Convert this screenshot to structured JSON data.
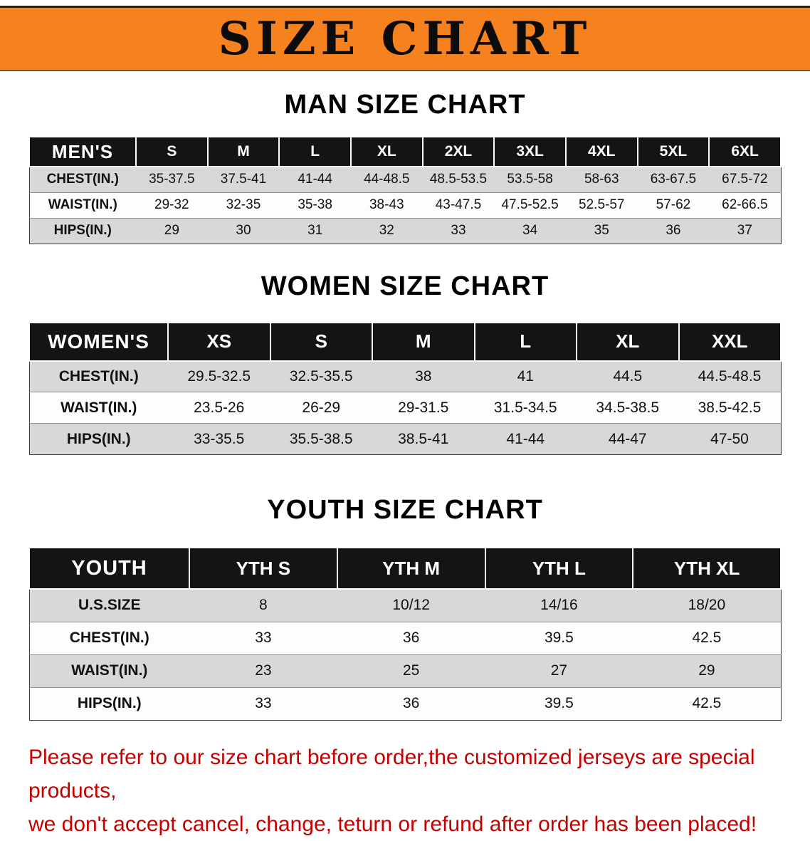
{
  "banner": {
    "title": "SIZE CHART"
  },
  "colors": {
    "banner_bg": "#f5821f",
    "header_bg": "#141414",
    "row_alt": "#d8d8d8",
    "footer_text": "#c20000"
  },
  "sections": [
    {
      "id": "mens",
      "title": "MAN SIZE CHART",
      "table": {
        "header": [
          "MEN'S",
          "S",
          "M",
          "L",
          "XL",
          "2XL",
          "3XL",
          "4XL",
          "5XL",
          "6XL"
        ],
        "rows": [
          [
            "CHEST(IN.)",
            "35-37.5",
            "37.5-41",
            "41-44",
            "44-48.5",
            "48.5-53.5",
            "53.5-58",
            "58-63",
            "63-67.5",
            "67.5-72"
          ],
          [
            "WAIST(IN.)",
            "29-32",
            "32-35",
            "35-38",
            "38-43",
            "43-47.5",
            "47.5-52.5",
            "52.5-57",
            "57-62",
            "62-66.5"
          ],
          [
            "HIPS(IN.)",
            "29",
            "30",
            "31",
            "32",
            "33",
            "34",
            "35",
            "36",
            "37"
          ]
        ]
      }
    },
    {
      "id": "womens",
      "title": "WOMEN SIZE CHART",
      "table": {
        "header": [
          "WOMEN'S",
          "XS",
          "S",
          "M",
          "L",
          "XL",
          "XXL"
        ],
        "rows": [
          [
            "CHEST(IN.)",
            "29.5-32.5",
            "32.5-35.5",
            "38",
            "41",
            "44.5",
            "44.5-48.5"
          ],
          [
            "WAIST(IN.)",
            "23.5-26",
            "26-29",
            "29-31.5",
            "31.5-34.5",
            "34.5-38.5",
            "38.5-42.5"
          ],
          [
            "HIPS(IN.)",
            "33-35.5",
            "35.5-38.5",
            "38.5-41",
            "41-44",
            "44-47",
            "47-50"
          ]
        ]
      }
    },
    {
      "id": "youth",
      "title": "YOUTH SIZE CHART",
      "table": {
        "header": [
          "YOUTH",
          "YTH S",
          "YTH M",
          "YTH L",
          "YTH XL"
        ],
        "rows": [
          [
            "U.S.SIZE",
            "8",
            "10/12",
            "14/16",
            "18/20"
          ],
          [
            "CHEST(IN.)",
            "33",
            "36",
            "39.5",
            "42.5"
          ],
          [
            "WAIST(IN.)",
            "23",
            "25",
            "27",
            "29"
          ],
          [
            "HIPS(IN.)",
            "33",
            "36",
            "39.5",
            "42.5"
          ]
        ]
      }
    }
  ],
  "footer": {
    "line1": "Please refer to our size chart before order,the customized jerseys are special products,",
    "line2": "we don't accept cancel, change, teturn or refund after order has been placed!"
  }
}
